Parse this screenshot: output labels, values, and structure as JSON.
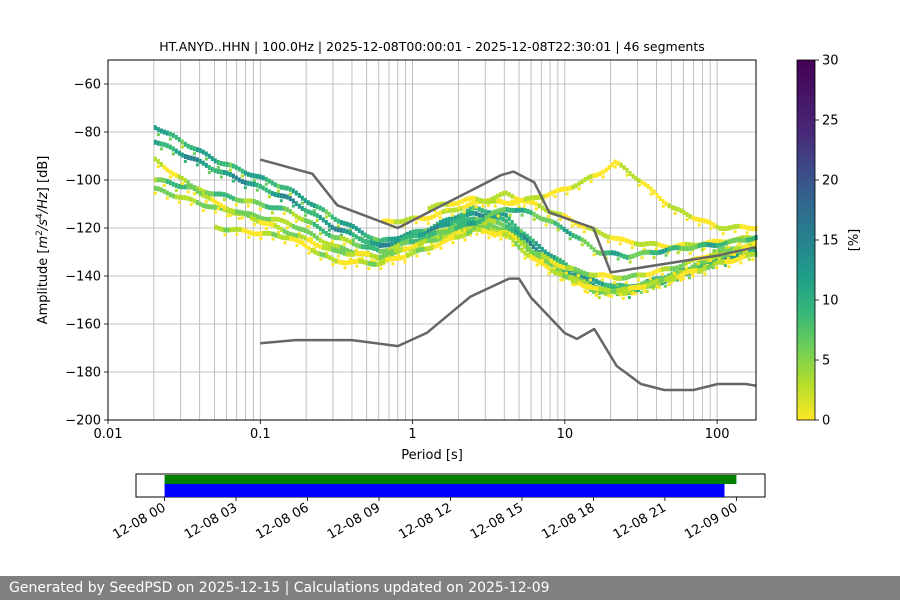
{
  "chart_data": [
    {
      "type": "heatmap",
      "title": "HT.ANYD..HHN | 100.0Hz | 2025-12-08T00:00:01 - 2025-12-08T22:30:01 | 46 segments",
      "xlabel": "Period [s]",
      "ylabel_parts": [
        "Amplitude [",
        "m",
        "2",
        "/",
        "s",
        "4",
        "/",
        "Hz",
        "] [dB]"
      ],
      "x_scale": "log",
      "xlim": [
        0.01,
        180
      ],
      "ylim": [
        -200,
        -50
      ],
      "grid": true,
      "x_ticks": [
        {
          "value": 0.01,
          "label": "0.01"
        },
        {
          "value": 0.1,
          "label": "0.1"
        },
        {
          "value": 1,
          "label": "1"
        },
        {
          "value": 10,
          "label": "10"
        },
        {
          "value": 100,
          "label": "100"
        }
      ],
      "y_ticks": [
        {
          "value": -60,
          "label": "−60"
        },
        {
          "value": -80,
          "label": "−80"
        },
        {
          "value": -100,
          "label": "−100"
        },
        {
          "value": -120,
          "label": "−120"
        },
        {
          "value": -140,
          "label": "−140"
        },
        {
          "value": -160,
          "label": "−160"
        },
        {
          "value": -180,
          "label": "−180"
        },
        {
          "value": -200,
          "label": "−200"
        }
      ],
      "colorbar": {
        "label": "[%]",
        "range": [
          0,
          30
        ],
        "ticks": [
          "0",
          "5",
          "10",
          "15",
          "20",
          "25",
          "30"
        ],
        "colormap": "viridis_r"
      },
      "noise_models": [
        {
          "name": "NHNM",
          "color": "#666666",
          "x": [
            0.1,
            0.22,
            0.32,
            0.8,
            3.8,
            4.6,
            6.3,
            7.9,
            15.4,
            20,
            100,
            180
          ],
          "y": [
            -91.5,
            -97.4,
            -110.5,
            -120,
            -98,
            -96.5,
            -101,
            -113.5,
            -120,
            -138.5,
            -131.5,
            -128
          ]
        },
        {
          "name": "NLNM",
          "color": "#666666",
          "x": [
            0.1,
            0.17,
            0.4,
            0.8,
            1.24,
            2.4,
            4.3,
            5.0,
            6.0,
            10,
            12,
            15.6,
            21.9,
            31.6,
            45,
            70,
            101,
            154,
            180
          ],
          "y": [
            -168,
            -166.7,
            -166.7,
            -169.2,
            -163.7,
            -148.6,
            -141.1,
            -141.1,
            -149,
            -163.8,
            -166.2,
            -162.1,
            -177.5,
            -185,
            -187.5,
            -187.5,
            -185,
            -185,
            -185.7
          ]
        }
      ],
      "psd_bands": [
        {
          "x": [
            0.02,
            0.05,
            0.15,
            0.3,
            0.6,
            1.2,
            2.5,
            4,
            6,
            10,
            16,
            25,
            50,
            100,
            180
          ],
          "y": [
            -78,
            -92,
            -104,
            -116,
            -126,
            -121,
            -112,
            -115,
            -126,
            -136,
            -143,
            -145,
            -140,
            -133,
            -129
          ],
          "level": 12
        },
        {
          "x": [
            0.02,
            0.05,
            0.15,
            0.3,
            0.6,
            1.2,
            2.5,
            4,
            6,
            10,
            16,
            25,
            50,
            100,
            180
          ],
          "y": [
            -84,
            -96,
            -108,
            -120,
            -128,
            -122,
            -114,
            -117,
            -128,
            -138,
            -145,
            -147,
            -141,
            -134,
            -130
          ],
          "level": 14
        },
        {
          "x": [
            0.02,
            0.05,
            0.15,
            0.3,
            0.6,
            1.2,
            2.5,
            4,
            6,
            10,
            16,
            25,
            50,
            100,
            180
          ],
          "y": [
            -100,
            -106,
            -113,
            -124,
            -130,
            -124,
            -116,
            -119,
            -130,
            -139,
            -146,
            -146,
            -140,
            -132,
            -128
          ],
          "level": 8
        },
        {
          "x": [
            0.02,
            0.05,
            0.15,
            0.3,
            0.6,
            1.2,
            2.5,
            4,
            6,
            10,
            16,
            25,
            50,
            100,
            180
          ],
          "y": [
            -104,
            -112,
            -118,
            -128,
            -133,
            -126,
            -118,
            -121,
            -131,
            -140,
            -147,
            -147,
            -141,
            -131,
            -126
          ],
          "level": 6
        },
        {
          "x": [
            0.02,
            0.05,
            0.15,
            0.3,
            0.6,
            1.2,
            2.5,
            4,
            6,
            10,
            16,
            25,
            50,
            100,
            180
          ],
          "y": [
            -92,
            -110,
            -122,
            -130,
            -132,
            -126,
            -120,
            -122,
            -130,
            -137,
            -140,
            -141,
            -137,
            -130,
            -127
          ],
          "level": 4
        },
        {
          "x": [
            0.05,
            0.15,
            0.3,
            0.6,
            1.2,
            2.5,
            4,
            6,
            10,
            16,
            25,
            50,
            100,
            180
          ],
          "y": [
            -120,
            -124,
            -134,
            -135,
            -129,
            -121,
            -123,
            -133,
            -141,
            -146,
            -146,
            -141,
            -135,
            -131
          ],
          "level": 3
        },
        {
          "x": [
            0.6,
            1.2,
            2.5,
            4,
            6,
            10,
            16,
            25,
            50,
            100,
            180
          ],
          "y": [
            -118,
            -116,
            -110,
            -106,
            -110,
            -116,
            -122,
            -126,
            -128,
            -126,
            -124
          ],
          "level": 2
        },
        {
          "x": [
            1.2,
            2.5,
            4,
            6,
            10,
            16,
            21,
            25,
            50,
            100,
            180
          ],
          "y": [
            -112,
            -108,
            -110,
            -108,
            -104,
            -98,
            -93,
            -96,
            -112,
            -120,
            -120
          ],
          "level": 2
        },
        {
          "x": [
            1.2,
            2.5,
            4,
            6,
            10,
            16,
            25,
            50,
            100,
            180
          ],
          "y": [
            -124,
            -118,
            -112,
            -114,
            -121,
            -130,
            -132,
            -129,
            -127,
            -124
          ],
          "level": 10
        }
      ]
    },
    {
      "type": "timeline",
      "xlim": [
        "2025-12-07T22:48",
        "2025-12-09T01:12"
      ],
      "tick_labels": [
        "12-08 00",
        "12-08 03",
        "12-08 06",
        "12-08 09",
        "12-08 12",
        "12-08 15",
        "12-08 18",
        "12-08 21",
        "12-09 00"
      ],
      "tick_hours": [
        0,
        3,
        6,
        9,
        12,
        15,
        18,
        21,
        24
      ],
      "bars": [
        {
          "name": "green",
          "color": "#008000",
          "start_hour": 0,
          "end_hour": 24.0
        },
        {
          "name": "blue",
          "color": "#0000ff",
          "start_hour": 0,
          "end_hour": 23.5
        }
      ]
    }
  ],
  "footer": "Generated by SeedPSD on 2025-12-15 | Calculations updated on 2025-12-09"
}
